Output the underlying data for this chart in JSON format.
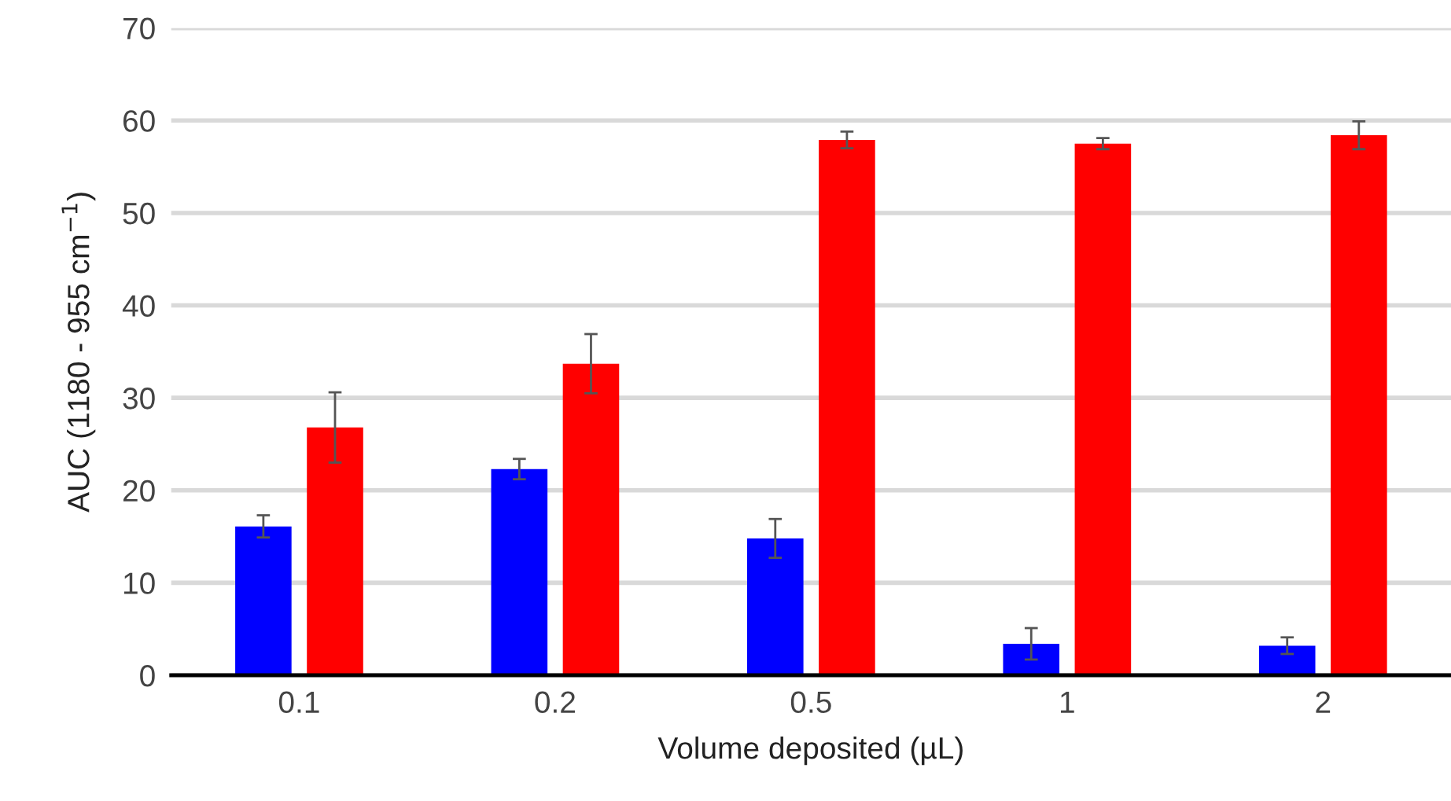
{
  "chart_data": {
    "type": "bar",
    "xlabel": "Volume deposited (µL)",
    "ylabel": "AUC (1180 - 955 cm$^{−1}$)",
    "categories": [
      "0.1",
      "0.2",
      "0.5",
      "1",
      "2"
    ],
    "series": [
      {
        "color": "#0000ff",
        "values": [
          16.1,
          22.3,
          14.8,
          3.4,
          3.2
        ],
        "errors": [
          1.2,
          1.1,
          2.1,
          1.7,
          0.9
        ]
      },
      {
        "color": "#ff0000",
        "values": [
          26.8,
          33.7,
          57.9,
          57.5,
          58.4
        ],
        "errors": [
          3.8,
          3.2,
          0.9,
          0.6,
          1.5
        ]
      }
    ],
    "ylim": [
      0,
      70
    ],
    "yticks": [
      0,
      10,
      20,
      30,
      40,
      50,
      60,
      70
    ],
    "grid": "y",
    "legend": false
  }
}
